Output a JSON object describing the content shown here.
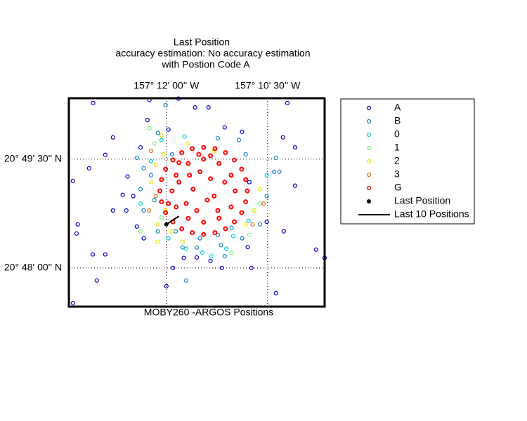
{
  "chart_data": {
    "type": "scatter",
    "title": [
      "Last Position",
      "accuracy estimation: No accuracy estimation",
      "with Postion Code A"
    ],
    "x_label": "MOBY260 -ARGOS Positions",
    "xlim": [
      -157.2241,
      -157.1609
    ],
    "ylim": [
      20.7911,
      20.839
    ],
    "xticks": [
      {
        "value": -157.2,
        "label": "157° 12' 00'' W"
      },
      {
        "value": -157.175,
        "label": "157° 10' 30'' W"
      }
    ],
    "yticks": [
      {
        "value": 20.825,
        "label": "20° 49' 30'' N"
      },
      {
        "value": 20.8,
        "label": "20° 48' 00'' N"
      }
    ],
    "grid": true,
    "legend": "outside-right",
    "series": [
      {
        "name": "A",
        "color": "#0000cc",
        "style": "circle",
        "x": [
          -157.2181,
          -157.2042,
          -157.197,
          -157.1701,
          -157.1929,
          -157.1896,
          -157.2047,
          -157.2132,
          -157.1856,
          -157.1813,
          -157.1712,
          -157.1682,
          -157.2151,
          -157.2191,
          -157.2231,
          -157.2096,
          -157.1682,
          -157.2108,
          -157.2132,
          -157.2219,
          -157.2222,
          -157.171,
          -157.2182,
          -157.2151,
          -157.1891,
          -157.1863,
          -157.1984,
          -157.179,
          -157.2172,
          -157.2,
          -157.1729,
          -157.2231,
          -157.163,
          -157.1609,
          -157.2056,
          -157.1752,
          -157.1799,
          -157.1957,
          -157.2082,
          -157.1795,
          -157.2064,
          -157.1995,
          -157.2099,
          -157.2073,
          -157.1925
        ],
        "y": [
          20.8379,
          20.8386,
          20.8389,
          20.8379,
          20.8369,
          20.8369,
          20.834,
          20.83,
          20.8323,
          20.8313,
          20.83,
          20.8277,
          20.826,
          20.8229,
          20.82,
          20.821,
          20.8189,
          20.8168,
          20.8132,
          20.81,
          20.8079,
          20.8084,
          20.8031,
          20.8031,
          20.8016,
          20.8,
          20.8,
          20.8,
          20.7971,
          20.7958,
          20.7942,
          20.7919,
          20.8042,
          20.8023,
          20.8068,
          20.8106,
          20.8048,
          20.8023,
          20.8165,
          20.8197,
          20.8277,
          20.8318,
          20.8132,
          20.8095,
          20.8024
        ]
      },
      {
        "name": "B",
        "color": "#1c7fc4",
        "style": "circle",
        "x": [
          -157.2002,
          -157.2021,
          -157.1873,
          -157.2073,
          -157.2056,
          -157.2064,
          -157.203,
          -157.2056,
          -157.2021,
          -157.196,
          -157.1925,
          -157.1865,
          -157.1813,
          -157.1769,
          -157.1752,
          -157.1734,
          -157.1721,
          -157.1729,
          -157.1804,
          -157.1821,
          -157.1873,
          -157.1839,
          -157.1977,
          -157.1917,
          -157.1951,
          -157.1856,
          -157.1986,
          -157.2038
        ],
        "y": [
          20.8374,
          20.831,
          20.8298,
          20.8253,
          20.8229,
          20.8181,
          20.8156,
          20.8132,
          20.8084,
          20.8047,
          20.8047,
          20.8052,
          20.8068,
          20.81,
          20.8165,
          20.8221,
          20.8221,
          20.8253,
          20.8261,
          20.8294,
          20.8076,
          20.8092,
          20.8084,
          20.8068,
          20.7971,
          20.8027,
          20.8261,
          20.8213
        ]
      },
      {
        "name": "0",
        "color": "#00d0d8",
        "style": "circle",
        "x": [
          -157.1951,
          -157.1911,
          -157.1889,
          -157.1852,
          -157.1797,
          -157.2012,
          -157.1955,
          -157.2038,
          -157.1995,
          -157.1835,
          -157.2064,
          -157.1752
        ],
        "y": [
          20.8044,
          20.8035,
          20.8027,
          20.8044,
          20.8108,
          20.8294,
          20.8302,
          20.8245,
          20.8068,
          20.8073,
          20.8148,
          20.8213
        ]
      },
      {
        "name": "1",
        "color": "#80ee80",
        "style": "circle",
        "x": [
          -157.2042,
          -157.203,
          -157.2064,
          -157.1839,
          -157.1769,
          -157.2012,
          -157.1795
        ],
        "y": [
          20.8321,
          20.8286,
          20.8084,
          20.8035,
          20.8148,
          20.8116,
          20.8076
        ]
      },
      {
        "name": "2",
        "color": "#e8e800",
        "style": "circle",
        "x": [
          -157.2012,
          -157.2007,
          -157.2038,
          -157.2026,
          -157.2021,
          -157.2003,
          -157.1986,
          -157.196,
          -157.1783,
          -157.1769,
          -157.1804,
          -157.1948,
          -157.1882,
          -157.2021
        ],
        "y": [
          20.8305,
          20.8261,
          20.8197,
          20.8237,
          20.81,
          20.8132,
          20.8084,
          20.806,
          20.8132,
          20.8181,
          20.81,
          20.8286,
          20.8269,
          20.806
        ]
      },
      {
        "name": "3",
        "color": "#e07010",
        "style": "circle",
        "x": [
          -157.2043,
          -157.2026,
          -157.176,
          -157.1787,
          -157.2038
        ],
        "y": [
          20.8132,
          20.8165,
          20.8148,
          20.81,
          20.8269
        ]
      },
      {
        "name": "G",
        "color": "#ff0000",
        "style": "circle",
        "x": [
          -157.18,
          -157.1804,
          -157.1814,
          -157.1832,
          -157.1854,
          -157.188,
          -157.1908,
          -157.1936,
          -157.1962,
          -157.1984,
          -157.2002,
          -157.2012,
          -157.2016,
          -157.2012,
          -157.2002,
          -157.1984,
          -157.1962,
          -157.1936,
          -157.1908,
          -157.188,
          -157.1854,
          -157.1832,
          -157.1814,
          -157.1804,
          -157.183,
          -157.184,
          -157.187,
          -157.1908,
          -157.1946,
          -157.1976,
          -157.1986,
          -157.1976,
          -157.1946,
          -157.1908,
          -157.187,
          -157.184,
          -157.1943,
          -157.1917,
          -157.1891,
          -157.1934,
          -157.1899,
          -157.1925,
          -157.1882,
          -157.1856,
          -157.1951,
          -157.1969,
          -157.1873,
          -157.1995,
          -157.192,
          -157.1891,
          -157.1969
        ],
        "y": [
          20.8177,
          20.8203,
          20.8227,
          20.8248,
          20.8265,
          20.8274,
          20.8277,
          20.8274,
          20.8265,
          20.8248,
          20.8227,
          20.8203,
          20.8177,
          20.8152,
          20.8127,
          20.8106,
          20.809,
          20.8081,
          20.8077,
          20.8081,
          20.809,
          20.8106,
          20.8127,
          20.8152,
          20.8177,
          20.8213,
          20.824,
          20.825,
          20.824,
          20.8213,
          20.8177,
          20.814,
          20.8114,
          20.8105,
          20.8114,
          20.814,
          20.8213,
          20.8221,
          20.8205,
          20.8181,
          20.8156,
          20.8132,
          20.8165,
          20.8197,
          20.8148,
          20.8197,
          20.8132,
          20.8148,
          20.8261,
          20.8258,
          20.8242
        ]
      },
      {
        "name": "Last Position",
        "color": "#000000",
        "style": "dot",
        "x": [
          -157.2
        ],
        "y": [
          20.81
        ]
      },
      {
        "name": "Last 10 Positions",
        "color": "#000000",
        "style": "line",
        "x": [
          -157.2,
          -157.199,
          -157.1979,
          -157.1969
        ],
        "y": [
          20.81,
          20.8106,
          20.8113,
          20.8119
        ]
      }
    ]
  }
}
